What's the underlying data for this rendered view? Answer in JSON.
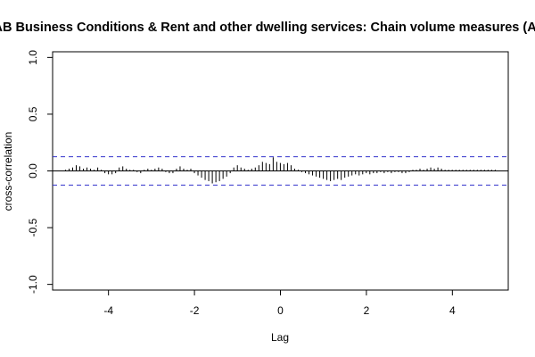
{
  "chart_data": {
    "type": "bar",
    "title": "AB Business Conditions & Rent and other dwelling services: Chain volume measures (AUD)",
    "xlabel": "Lag",
    "ylabel": "cross-correlation",
    "xlim": [
      -5.3,
      5.3
    ],
    "ylim": [
      -1.05,
      1.05
    ],
    "x_ticks": [
      -4,
      -2,
      0,
      2,
      4
    ],
    "x_tick_labels": [
      "-4",
      "-2",
      "0",
      "2",
      "4"
    ],
    "y_ticks": [
      -1.0,
      -0.5,
      0.0,
      0.5,
      1.0
    ],
    "y_tick_labels": [
      "-1.0",
      "-0.5",
      "0.0",
      "0.5",
      "1.0"
    ],
    "confidence_bound": 0.125,
    "colors": {
      "bars": "#000000",
      "ci": "#3333cc",
      "frame": "#000000"
    },
    "lag_start": -5.0,
    "lag_step": 0.0833,
    "values": [
      0.01,
      0.02,
      0.03,
      0.05,
      0.04,
      0.02,
      0.03,
      0.02,
      0.01,
      0.03,
      0.01,
      -0.02,
      -0.03,
      -0.03,
      -0.02,
      0.03,
      0.04,
      0.02,
      0.01,
      0.01,
      -0.01,
      -0.02,
      0.01,
      0.02,
      0.01,
      0.02,
      0.03,
      0.02,
      -0.01,
      -0.02,
      -0.02,
      0.02,
      0.04,
      0.02,
      0.01,
      0.02,
      -0.02,
      -0.04,
      -0.06,
      -0.08,
      -0.09,
      -0.11,
      -0.1,
      -0.09,
      -0.07,
      -0.05,
      -0.02,
      0.03,
      0.05,
      0.03,
      0.02,
      0.01,
      0.02,
      0.03,
      0.05,
      0.08,
      0.07,
      0.06,
      0.12,
      0.08,
      0.07,
      0.06,
      0.07,
      0.05,
      0.02,
      0.01,
      -0.01,
      -0.02,
      -0.03,
      -0.04,
      -0.05,
      -0.06,
      -0.07,
      -0.08,
      -0.09,
      -0.08,
      -0.07,
      -0.08,
      -0.06,
      -0.05,
      -0.04,
      -0.03,
      -0.04,
      -0.03,
      -0.02,
      -0.03,
      -0.02,
      -0.02,
      -0.01,
      -0.02,
      -0.01,
      -0.02,
      -0.01,
      -0.01,
      -0.02,
      -0.02,
      -0.01,
      0.01,
      0.01,
      0.02,
      0.01,
      0.02,
      0.03,
      0.02,
      0.03,
      0.02,
      0.01,
      0.01,
      0.01,
      0.01,
      0.01,
      0.01,
      0.01,
      0.01,
      0.01,
      0.01,
      0.01,
      0.01,
      0.01,
      0.01,
      0.01
    ]
  }
}
